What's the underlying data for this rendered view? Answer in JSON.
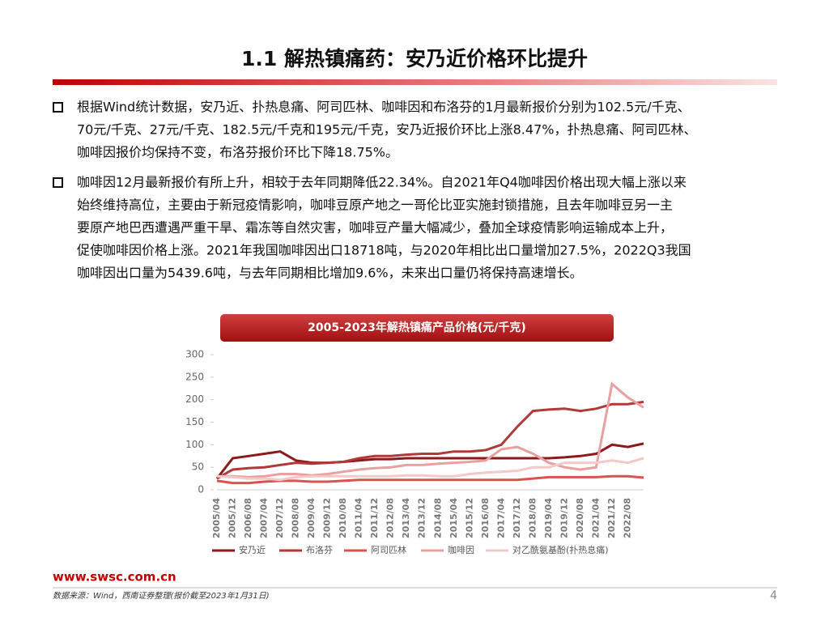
{
  "header": {
    "title": "1.1 解热镇痛药：安乃近价格环比提升"
  },
  "bullets": [
    {
      "lines": [
        "根据Wind统计数据，安乃近、扑热息痛、阿司匹林、咖啡因和布洛芬的1月最新报价分别为102.5元/千克、",
        "70元/千克、27元/千克、182.5元/千克和195元/千克，安乃近报价环比上涨8.47%，扑热息痛、阿司匹林、",
        "咖啡因报价均保持不变，布洛芬报价环比下降18.75%。"
      ]
    },
    {
      "lines": [
        "咖啡因12月最新报价有所上升，相较于去年同期降低22.34%。自2021年Q4咖啡因价格出现大幅上涨以来",
        "始终维持高位，主要由于新冠疫情影响，咖啡豆原产地之一哥伦比亚实施封锁措施，且去年咖啡豆另一主",
        "要原产地巴西遭遇严重干旱、霜冻等自然灾害，咖啡豆产量大幅减少，叠加全球疫情影响运输成本上升，",
        "促使咖啡因价格上涨。2021年我国咖啡因出口18718吨，与2020年相比出口量增加27.5%，2022Q3我国",
        "咖啡因出口量为5439.6吨，与去年同期相比增加9.6%，未来出口量仍将保持高速增长。"
      ]
    }
  ],
  "chart_data": {
    "type": "line",
    "title": "2005-2023年解热镇痛产品价格(元/千克)",
    "categories": [
      "2005/04",
      "2005/12",
      "2006/08",
      "2007/04",
      "2007/12",
      "2008/08",
      "2009/04",
      "2009/12",
      "2010/08",
      "2011/04",
      "2011/12",
      "2012/08",
      "2013/04",
      "2013/12",
      "2014/08",
      "2015/04",
      "2015/12",
      "2016/08",
      "2017/04",
      "2017/12",
      "2018/08",
      "2019/04",
      "2019/12",
      "2020/08",
      "2021/04",
      "2021/12",
      "2022/08",
      null
    ],
    "series": [
      {
        "name": "安乃近",
        "color": "#8b1a1a",
        "values": [
          25,
          70,
          75,
          80,
          85,
          65,
          60,
          60,
          62,
          65,
          68,
          68,
          70,
          70,
          70,
          70,
          70,
          70,
          70,
          70,
          70,
          70,
          72,
          75,
          80,
          100,
          95,
          102.5
        ]
      },
      {
        "name": "布洛芬",
        "color": "#b03a3a",
        "values": [
          25,
          45,
          48,
          50,
          55,
          60,
          58,
          60,
          62,
          70,
          75,
          75,
          78,
          80,
          80,
          85,
          85,
          88,
          100,
          140,
          175,
          178,
          180,
          175,
          180,
          190,
          190,
          195
        ]
      },
      {
        "name": "阿司匹林",
        "color": "#d9534f",
        "values": [
          20,
          15,
          15,
          18,
          20,
          20,
          18,
          18,
          20,
          22,
          22,
          22,
          22,
          22,
          22,
          22,
          22,
          22,
          22,
          22,
          25,
          28,
          28,
          28,
          28,
          30,
          30,
          27
        ]
      },
      {
        "name": "咖啡因",
        "color": "#e8a0a0",
        "values": [
          30,
          30,
          28,
          30,
          35,
          35,
          32,
          35,
          40,
          45,
          48,
          50,
          55,
          55,
          58,
          60,
          62,
          65,
          90,
          95,
          80,
          60,
          50,
          45,
          50,
          235,
          205,
          182.5
        ]
      },
      {
        "name": "对乙酰氨基酚(扑热息痛)",
        "color": "#f2c8c8",
        "values": [
          30,
          28,
          25,
          25,
          22,
          28,
          30,
          30,
          30,
          30,
          30,
          30,
          32,
          32,
          30,
          30,
          35,
          38,
          40,
          42,
          50,
          50,
          60,
          60,
          60,
          65,
          60,
          70
        ]
      }
    ],
    "ylim": [
      0,
      300
    ],
    "yticks": [
      0,
      50,
      100,
      150,
      200,
      250,
      300
    ]
  },
  "footer": {
    "site": "www.swsc.com.cn",
    "source": "数据来源：Wind，西南证券整理(报价截至2023年1月31日)",
    "page": "4"
  }
}
